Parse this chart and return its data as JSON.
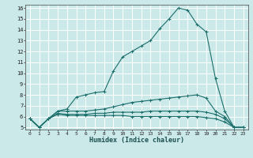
{
  "title": "",
  "xlabel": "Humidex (Indice chaleur)",
  "ylabel": "",
  "background_color": "#cce9ea",
  "grid_color": "#ffffff",
  "line_color": "#1a6e6a",
  "xlim": [
    -0.5,
    23.5
  ],
  "ylim": [
    4.8,
    16.3
  ],
  "xticks": [
    0,
    1,
    2,
    3,
    4,
    5,
    6,
    7,
    8,
    9,
    10,
    11,
    12,
    13,
    14,
    15,
    16,
    17,
    18,
    19,
    20,
    21,
    22,
    23
  ],
  "yticks": [
    5,
    6,
    7,
    8,
    9,
    10,
    11,
    12,
    13,
    14,
    15,
    16
  ],
  "series": [
    {
      "x": [
        0,
        1,
        2,
        3,
        4,
        5,
        6,
        7,
        8,
        9,
        10,
        11,
        12,
        13,
        14,
        15,
        16,
        17,
        18,
        19,
        20,
        21,
        22,
        23
      ],
      "y": [
        5.8,
        5.0,
        5.8,
        6.5,
        6.7,
        7.8,
        8.0,
        8.2,
        8.3,
        10.2,
        11.5,
        12.0,
        12.5,
        13.0,
        14.1,
        15.0,
        16.0,
        15.8,
        14.5,
        13.8,
        9.5,
        6.5,
        5.0,
        5.0
      ]
    },
    {
      "x": [
        0,
        1,
        2,
        3,
        4,
        5,
        6,
        7,
        8,
        9,
        10,
        11,
        12,
        13,
        14,
        15,
        16,
        17,
        18,
        19,
        20,
        21,
        22,
        23
      ],
      "y": [
        5.8,
        5.0,
        5.8,
        6.5,
        6.5,
        6.5,
        6.5,
        6.6,
        6.7,
        6.9,
        7.1,
        7.3,
        7.4,
        7.5,
        7.6,
        7.7,
        7.8,
        7.9,
        8.0,
        7.7,
        6.5,
        6.0,
        5.0,
        5.0
      ]
    },
    {
      "x": [
        0,
        1,
        2,
        3,
        4,
        5,
        6,
        7,
        8,
        9,
        10,
        11,
        12,
        13,
        14,
        15,
        16,
        17,
        18,
        19,
        20,
        21,
        22,
        23
      ],
      "y": [
        5.8,
        5.0,
        5.8,
        6.3,
        6.2,
        6.2,
        6.2,
        6.3,
        6.3,
        6.4,
        6.4,
        6.4,
        6.4,
        6.5,
        6.5,
        6.5,
        6.5,
        6.5,
        6.5,
        6.4,
        6.2,
        5.8,
        5.0,
        5.0
      ]
    },
    {
      "x": [
        0,
        1,
        2,
        3,
        4,
        5,
        6,
        7,
        8,
        9,
        10,
        11,
        12,
        13,
        14,
        15,
        16,
        17,
        18,
        19,
        20,
        21,
        22,
        23
      ],
      "y": [
        5.8,
        5.0,
        5.8,
        6.2,
        6.1,
        6.1,
        6.1,
        6.1,
        6.1,
        6.1,
        6.1,
        6.0,
        6.0,
        6.0,
        6.0,
        6.0,
        6.0,
        6.0,
        6.0,
        5.9,
        5.8,
        5.5,
        5.0,
        5.0
      ]
    }
  ]
}
